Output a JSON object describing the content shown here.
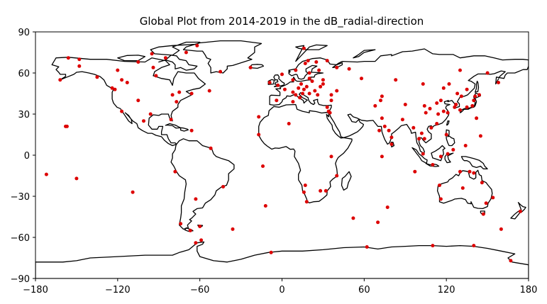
{
  "chart_data": {
    "type": "scatter",
    "title": "Global Plot from 2014-2019 in the dB_radial-direction",
    "xlim": [
      -180,
      180
    ],
    "ylim": [
      -90,
      90
    ],
    "x_ticks": [
      -180,
      -120,
      -60,
      0,
      60,
      120,
      180
    ],
    "y_ticks": [
      90,
      60,
      30,
      0,
      -30,
      -60,
      -90
    ],
    "x_tick_labels": [
      "−180",
      "−120",
      "−60",
      "0",
      "60",
      "120",
      "180"
    ],
    "y_tick_labels": [
      "90",
      "60",
      "30",
      "0",
      "−30",
      "−60",
      "−90"
    ],
    "marker_color": "#dd0000",
    "coastline_color": "#000000",
    "grid": false,
    "points": [
      {
        "lon": -156,
        "lat": 71
      },
      {
        "lon": -148,
        "lat": 70
      },
      {
        "lon": -162,
        "lat": 55
      },
      {
        "lon": -148,
        "lat": 65
      },
      {
        "lon": -135,
        "lat": 57
      },
      {
        "lon": -120,
        "lat": 62
      },
      {
        "lon": -117,
        "lat": 55
      },
      {
        "lon": -105,
        "lat": 68
      },
      {
        "lon": -95,
        "lat": 74
      },
      {
        "lon": -94,
        "lat": 64
      },
      {
        "lon": -92,
        "lat": 58
      },
      {
        "lon": -85,
        "lat": 71
      },
      {
        "lon": -70,
        "lat": 75
      },
      {
        "lon": -62,
        "lat": 80
      },
      {
        "lon": -45,
        "lat": 61
      },
      {
        "lon": -124,
        "lat": 49
      },
      {
        "lon": -113,
        "lat": 53
      },
      {
        "lon": -105,
        "lat": 40
      },
      {
        "lon": -122,
        "lat": 48
      },
      {
        "lon": -117,
        "lat": 32
      },
      {
        "lon": -77,
        "lat": 39
      },
      {
        "lon": -80,
        "lat": 44
      },
      {
        "lon": -75,
        "lat": 46
      },
      {
        "lon": -66,
        "lat": 45
      },
      {
        "lon": -53,
        "lat": 47
      },
      {
        "lon": -81,
        "lat": 26
      },
      {
        "lon": -158,
        "lat": 21
      },
      {
        "lon": -157,
        "lat": 21
      },
      {
        "lon": -96,
        "lat": 30
      },
      {
        "lon": -101,
        "lat": 25
      },
      {
        "lon": -66,
        "lat": 18
      },
      {
        "lon": -52,
        "lat": 5
      },
      {
        "lon": -78,
        "lat": -12
      },
      {
        "lon": -63,
        "lat": -32
      },
      {
        "lon": -43,
        "lat": -23
      },
      {
        "lon": -60,
        "lat": -52
      },
      {
        "lon": -67,
        "lat": -55
      },
      {
        "lon": -74,
        "lat": -50
      },
      {
        "lon": -63,
        "lat": -64
      },
      {
        "lon": -59,
        "lat": -62
      },
      {
        "lon": -36,
        "lat": -54
      },
      {
        "lon": -109,
        "lat": -27
      },
      {
        "lon": -150,
        "lat": -17
      },
      {
        "lon": -172,
        "lat": -14
      },
      {
        "lon": -14,
        "lat": -8
      },
      {
        "lon": -12,
        "lat": -37
      },
      {
        "lon": -23,
        "lat": 64
      },
      {
        "lon": -17,
        "lat": 28
      },
      {
        "lon": -17,
        "lat": 15
      },
      {
        "lon": 5,
        "lat": 23
      },
      {
        "lon": -9,
        "lat": 53
      },
      {
        "lon": -3,
        "lat": 51
      },
      {
        "lon": 0,
        "lat": 59
      },
      {
        "lon": 2,
        "lat": 48
      },
      {
        "lon": -4,
        "lat": 40
      },
      {
        "lon": 8,
        "lat": 46
      },
      {
        "lon": 10,
        "lat": 44
      },
      {
        "lon": 12,
        "lat": 49
      },
      {
        "lon": 16,
        "lat": 48
      },
      {
        "lon": 20,
        "lat": 45
      },
      {
        "lon": 14,
        "lat": 52
      },
      {
        "lon": 18,
        "lat": 50
      },
      {
        "lon": 22,
        "lat": 54
      },
      {
        "lon": 24,
        "lat": 47
      },
      {
        "lon": 26,
        "lat": 44
      },
      {
        "lon": 28,
        "lat": 50
      },
      {
        "lon": 30,
        "lat": 55
      },
      {
        "lon": 20,
        "lat": 56
      },
      {
        "lon": 15,
        "lat": 45
      },
      {
        "lon": 8,
        "lat": 55
      },
      {
        "lon": 10,
        "lat": 62
      },
      {
        "lon": 17,
        "lat": 67
      },
      {
        "lon": 19,
        "lat": 69
      },
      {
        "lon": 25,
        "lat": 68
      },
      {
        "lon": 27,
        "lat": 62
      },
      {
        "lon": 16,
        "lat": 78
      },
      {
        "lon": 20,
        "lat": 60
      },
      {
        "lon": 33,
        "lat": 69
      },
      {
        "lon": 36,
        "lat": 44
      },
      {
        "lon": 40,
        "lat": 47
      },
      {
        "lon": 33,
        "lat": 35
      },
      {
        "lon": 35,
        "lat": 31
      },
      {
        "lon": 36,
        "lat": 40
      },
      {
        "lon": 58,
        "lat": 56
      },
      {
        "lon": 49,
        "lat": 63
      },
      {
        "lon": 40,
        "lat": 64
      },
      {
        "lon": 30,
        "lat": 52
      },
      {
        "lon": 13,
        "lat": 42
      },
      {
        "lon": 8,
        "lat": 39
      },
      {
        "lon": 34,
        "lat": 32
      },
      {
        "lon": 73,
        "lat": 43
      },
      {
        "lon": 72,
        "lat": 40
      },
      {
        "lon": 68,
        "lat": 36
      },
      {
        "lon": 73,
        "lat": 27
      },
      {
        "lon": 78,
        "lat": 18
      },
      {
        "lon": 80,
        "lat": 13
      },
      {
        "lon": 75,
        "lat": 21
      },
      {
        "lon": 71,
        "lat": 18
      },
      {
        "lon": 80,
        "lat": 8
      },
      {
        "lon": 83,
        "lat": 55
      },
      {
        "lon": 88,
        "lat": 26
      },
      {
        "lon": 73,
        "lat": -1
      },
      {
        "lon": 90,
        "lat": 37
      },
      {
        "lon": 96,
        "lat": 20
      },
      {
        "lon": 103,
        "lat": 52
      },
      {
        "lon": 104,
        "lat": 36
      },
      {
        "lon": 105,
        "lat": 31
      },
      {
        "lon": 108,
        "lat": 34
      },
      {
        "lon": 113,
        "lat": 38
      },
      {
        "lon": 116,
        "lat": 40
      },
      {
        "lon": 114,
        "lat": 30
      },
      {
        "lon": 118,
        "lat": 32
      },
      {
        "lon": 121,
        "lat": 31
      },
      {
        "lon": 113,
        "lat": 23
      },
      {
        "lon": 109,
        "lat": 20
      },
      {
        "lon": 102,
        "lat": 16
      },
      {
        "lon": 100,
        "lat": 12
      },
      {
        "lon": 104,
        "lat": 12
      },
      {
        "lon": 120,
        "lat": 15
      },
      {
        "lon": 103,
        "lat": 1
      },
      {
        "lon": 116,
        "lat": -1
      },
      {
        "lon": 121,
        "lat": 1
      },
      {
        "lon": 125,
        "lat": 4
      },
      {
        "lon": 110,
        "lat": -7
      },
      {
        "lon": 97,
        "lat": -12
      },
      {
        "lon": 126,
        "lat": 35
      },
      {
        "lon": 127,
        "lat": 37
      },
      {
        "lon": 130,
        "lat": 33
      },
      {
        "lon": 135,
        "lat": 35
      },
      {
        "lon": 139,
        "lat": 36
      },
      {
        "lon": 140,
        "lat": 40
      },
      {
        "lon": 141,
        "lat": 43
      },
      {
        "lon": 144,
        "lat": 44
      },
      {
        "lon": 131,
        "lat": 43
      },
      {
        "lon": 135,
        "lat": 48
      },
      {
        "lon": 128,
        "lat": 45
      },
      {
        "lon": 118,
        "lat": 49
      },
      {
        "lon": 122,
        "lat": 52
      },
      {
        "lon": 130,
        "lat": 62
      },
      {
        "lon": 150,
        "lat": 60
      },
      {
        "lon": 158,
        "lat": 53
      },
      {
        "lon": 142,
        "lat": 27
      },
      {
        "lon": 145,
        "lat": 14
      },
      {
        "lon": 134,
        "lat": 7
      },
      {
        "lon": 130,
        "lat": -12
      },
      {
        "lon": 137,
        "lat": -12
      },
      {
        "lon": 115,
        "lat": -22
      },
      {
        "lon": 116,
        "lat": -32
      },
      {
        "lon": 132,
        "lat": -24
      },
      {
        "lon": 146,
        "lat": -20
      },
      {
        "lon": 149,
        "lat": -35
      },
      {
        "lon": 147,
        "lat": -43
      },
      {
        "lon": 154,
        "lat": -31
      },
      {
        "lon": 140,
        "lat": -13
      },
      {
        "lon": 160,
        "lat": -54
      },
      {
        "lon": 174,
        "lat": -41
      },
      {
        "lon": 167,
        "lat": -77
      },
      {
        "lon": 40,
        "lat": -15
      },
      {
        "lon": 32,
        "lat": -26
      },
      {
        "lon": 28,
        "lat": -26
      },
      {
        "lon": 18,
        "lat": -34
      },
      {
        "lon": 17,
        "lat": -22
      },
      {
        "lon": 16,
        "lat": -27
      },
      {
        "lon": 36,
        "lat": -1
      },
      {
        "lon": 52,
        "lat": -46
      },
      {
        "lon": 70,
        "lat": -49
      },
      {
        "lon": 77,
        "lat": -38
      },
      {
        "lon": 62,
        "lat": -67
      },
      {
        "lon": 110,
        "lat": -66
      },
      {
        "lon": 140,
        "lat": -66
      },
      {
        "lon": -8,
        "lat": -71
      }
    ]
  }
}
